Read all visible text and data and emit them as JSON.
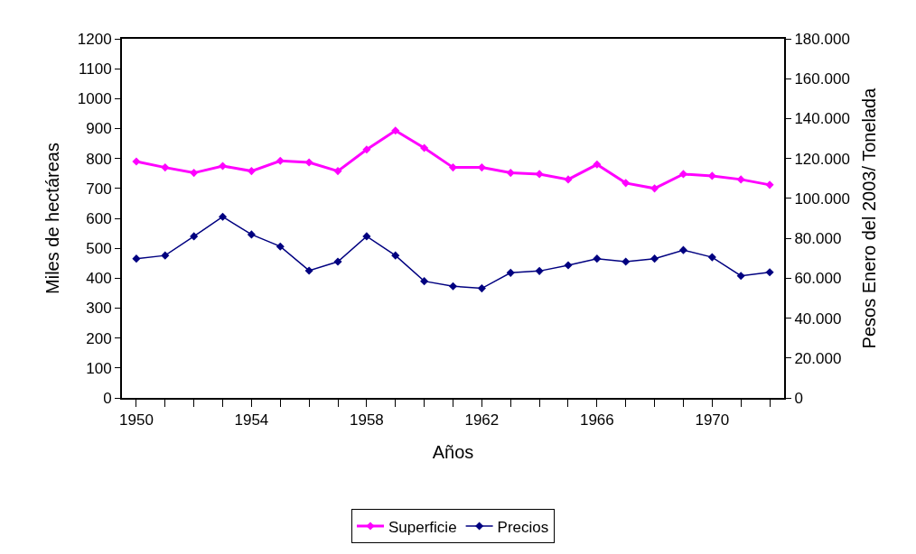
{
  "chart_data": {
    "type": "line",
    "xlabel": "Años",
    "ylabel": "Miles de hectáreas",
    "y2label": "Pesos Enero del 2003/ Tonelada",
    "x": [
      1950,
      1951,
      1952,
      1953,
      1954,
      1955,
      1956,
      1957,
      1958,
      1959,
      1960,
      1961,
      1962,
      1963,
      1964,
      1965,
      1966,
      1967,
      1968,
      1969,
      1970,
      1971,
      1972
    ],
    "series": [
      {
        "name": "Superficie",
        "color": "#ff00ff",
        "values": [
          790,
          770,
          752,
          775,
          758,
          792,
          787,
          758,
          830,
          893,
          835,
          770,
          770,
          752,
          748,
          730,
          780,
          718,
          700,
          748,
          742,
          730,
          712
        ]
      },
      {
        "name": "Precios",
        "color": "#000080",
        "axis": "y2",
        "values": [
          69800,
          71400,
          81000,
          90800,
          81900,
          75900,
          63800,
          68300,
          81000,
          71400,
          58500,
          56000,
          54900,
          62700,
          63600,
          66500,
          69800,
          68300,
          69800,
          74100,
          70500,
          61200,
          63000
        ]
      }
    ],
    "xlim": [
      1949.5,
      1972.5
    ],
    "xticks": [
      1950,
      1954,
      1958,
      1962,
      1966,
      1970
    ],
    "ylim": [
      0,
      1200
    ],
    "yticks": [
      0,
      100,
      200,
      300,
      400,
      500,
      600,
      700,
      800,
      900,
      1000,
      1100,
      1200
    ],
    "y2lim": [
      0,
      180000
    ],
    "y2ticks": [
      0,
      {
        "value": 20000,
        "label": "20.000"
      },
      {
        "value": 40000,
        "label": "40.000"
      },
      {
        "value": 60000,
        "label": "60.000"
      },
      {
        "value": 80000,
        "label": "80.000"
      },
      {
        "value": 100000,
        "label": "100.000"
      },
      {
        "value": 120000,
        "label": "120.000"
      },
      {
        "value": 140000,
        "label": "140.000"
      },
      {
        "value": 160000,
        "label": "160.000"
      },
      {
        "value": 180000,
        "label": "180.000"
      }
    ],
    "marker": "diamond",
    "line_style": "solid",
    "legend": "bottom"
  }
}
